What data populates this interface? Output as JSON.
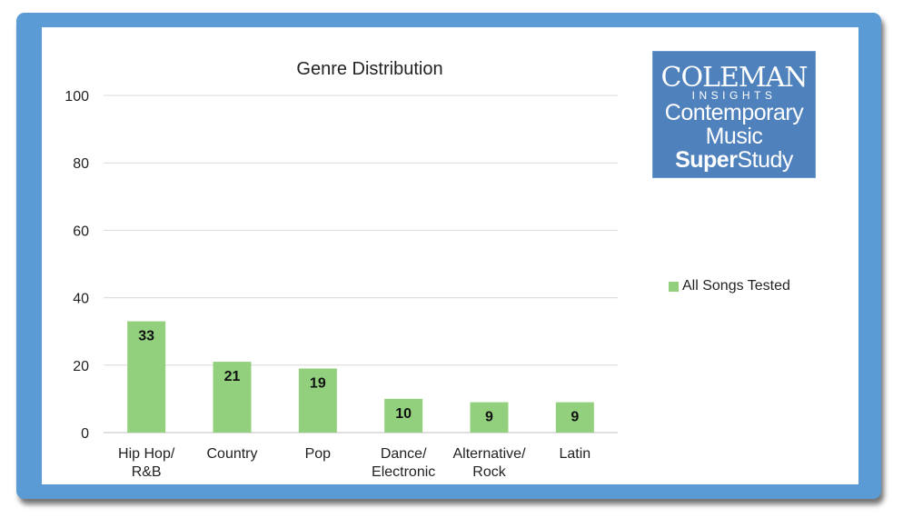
{
  "chart_data": {
    "type": "bar",
    "title": "Genre Distribution",
    "categories": [
      [
        "Hip Hop/",
        "R&B"
      ],
      [
        "Country"
      ],
      [
        "Pop"
      ],
      [
        "Dance/",
        "Electronic"
      ],
      [
        "Alternative/",
        "Rock"
      ],
      [
        "Latin"
      ]
    ],
    "series": [
      {
        "name": "All Songs Tested",
        "values": [
          33,
          21,
          19,
          10,
          9,
          9
        ],
        "color": "#92d07e"
      }
    ],
    "ylim": [
      0,
      100
    ],
    "yticks": [
      0,
      20,
      40,
      60,
      80,
      100
    ],
    "grid": true,
    "legend": "right",
    "data_labels": true
  },
  "logo": {
    "brand": "COLEMAN",
    "sub": "INSIGHTS",
    "line1": "Contemporary",
    "line2": "Music",
    "line3_bold": "Super",
    "line3_rest": "Study",
    "background": "#4f81bd"
  },
  "legend": {
    "label": "All Songs Tested"
  }
}
